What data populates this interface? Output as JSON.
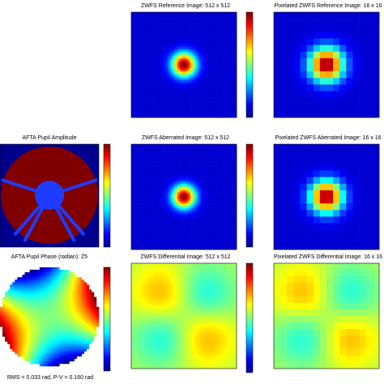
{
  "panels": [
    {
      "title": "ZWFS Reference Image: 512 x 512"
    },
    {
      "title": "Pixelated ZWFS Reference Image: 16 x 16"
    },
    {
      "title": "AFTA Pupil Amplitude"
    },
    {
      "title": "ZWFS Aberrated Image: 512 x 512"
    },
    {
      "title": "Pixelated ZWFS Aberrated Image: 16 x 16"
    },
    {
      "title": "AFTA Pupil Phase (radian): Z5"
    },
    {
      "title": "ZWFS Differential Image: 512 x 512"
    },
    {
      "title": "Pixelated ZWFS Differential Image: 16 x 16"
    }
  ],
  "note": "RMS = 0.033 rad, P-V = 0.160 rad"
}
